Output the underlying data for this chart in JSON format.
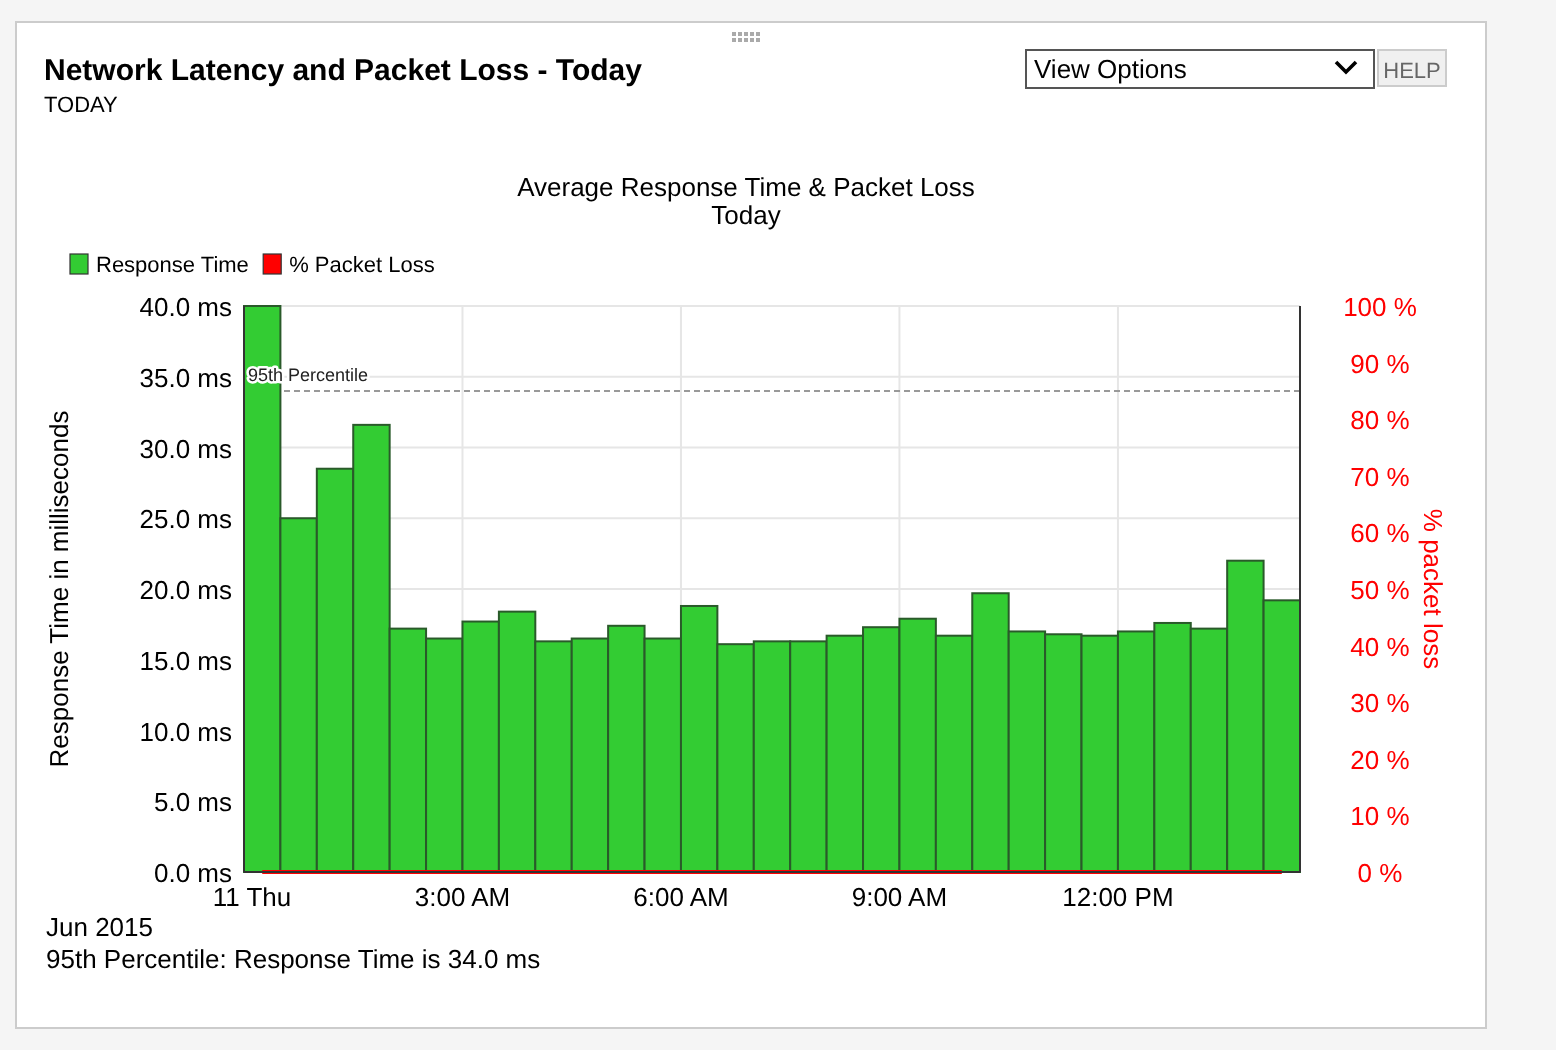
{
  "chart_data": {
    "type": "bar",
    "title": "Network Latency and Packet Loss - Today",
    "subtitle": "TODAY",
    "annotations": [
      "View Options",
      "HELP",
      "Average Response Time & Packet Loss",
      "Today",
      "Jun 2015",
      "95th Percentile: Response Time is 34.0  ms"
    ],
    "ylabel": "Response Time in milliseconds",
    "y2label": "% packet loss",
    "x": [
      "2015-06-11T00:15",
      "2015-06-11T00:45",
      "2015-06-11T01:15",
      "2015-06-11T01:45",
      "2015-06-11T02:15",
      "2015-06-11T02:45",
      "2015-06-11T03:15",
      "2015-06-11T03:45",
      "2015-06-11T04:15",
      "2015-06-11T04:45",
      "2015-06-11T05:15",
      "2015-06-11T05:45",
      "2015-06-11T06:15",
      "2015-06-11T06:45",
      "2015-06-11T07:15",
      "2015-06-11T07:45",
      "2015-06-11T08:15",
      "2015-06-11T08:45",
      "2015-06-11T09:15",
      "2015-06-11T09:45",
      "2015-06-11T10:15",
      "2015-06-11T10:45",
      "2015-06-11T11:15",
      "2015-06-11T11:45",
      "2015-06-11T12:15",
      "2015-06-11T12:45",
      "2015-06-11T13:15",
      "2015-06-11T13:45",
      "2015-06-11T14:15"
    ],
    "xlim": [
      "2015-06-11T00:00",
      "2015-06-11T14:30"
    ],
    "xticks": [
      {
        "value": "2015-06-11T00:00",
        "label": "11 Thu"
      },
      {
        "value": "2015-06-11T03:00",
        "label": "3:00 AM"
      },
      {
        "value": "2015-06-11T06:00",
        "label": "6:00 AM"
      },
      {
        "value": "2015-06-11T09:00",
        "label": "9:00 AM"
      },
      {
        "value": "2015-06-11T12:00",
        "label": "12:00 PM"
      }
    ],
    "series": [
      {
        "name": "Response Time",
        "color": "#33cc33",
        "values": [
          40.0,
          25.0,
          28.5,
          31.6,
          17.2,
          16.5,
          17.7,
          18.4,
          16.3,
          16.5,
          17.4,
          16.5,
          18.8,
          16.1,
          16.3,
          16.3,
          16.7,
          17.3,
          17.9,
          16.7,
          19.7,
          17.0,
          16.8,
          16.7,
          17.0,
          17.6,
          17.2,
          22.0,
          19.2
        ]
      },
      {
        "name": "% Packet Loss",
        "type": "line",
        "axis": "y2",
        "color": "#ff0000",
        "values": [
          0,
          0,
          0,
          0,
          0,
          0,
          0,
          0,
          0,
          0,
          0,
          0,
          0,
          0,
          0,
          0,
          0,
          0,
          0,
          0,
          0,
          0,
          0,
          0,
          0,
          0,
          0,
          0,
          0
        ]
      }
    ],
    "ylim": [
      0,
      40
    ],
    "yticks": [
      {
        "value": 0,
        "label": "0.0 ms"
      },
      {
        "value": 5,
        "label": "5.0 ms"
      },
      {
        "value": 10,
        "label": "10.0 ms"
      },
      {
        "value": 15,
        "label": "15.0 ms"
      },
      {
        "value": 20,
        "label": "20.0 ms"
      },
      {
        "value": 25,
        "label": "25.0 ms"
      },
      {
        "value": 30,
        "label": "30.0 ms"
      },
      {
        "value": 35,
        "label": "35.0 ms"
      },
      {
        "value": 40,
        "label": "40.0 ms"
      }
    ],
    "y2lim": [
      0,
      100
    ],
    "y2ticks": [
      {
        "value": 0,
        "label": "0 %"
      },
      {
        "value": 10,
        "label": "10 %"
      },
      {
        "value": 20,
        "label": "20 %"
      },
      {
        "value": 30,
        "label": "30 %"
      },
      {
        "value": 40,
        "label": "40 %"
      },
      {
        "value": 50,
        "label": "50 %"
      },
      {
        "value": 60,
        "label": "60 %"
      },
      {
        "value": 70,
        "label": "70 %"
      },
      {
        "value": 80,
        "label": "80 %"
      },
      {
        "value": 90,
        "label": "90 %"
      },
      {
        "value": 100,
        "label": "100 %"
      }
    ],
    "ref_lines": [
      {
        "axis": "y",
        "value": 34.0,
        "label": "95th Percentile",
        "color": "#999999",
        "line_style": "dashed"
      }
    ],
    "grid": true,
    "legend": "top left"
  }
}
